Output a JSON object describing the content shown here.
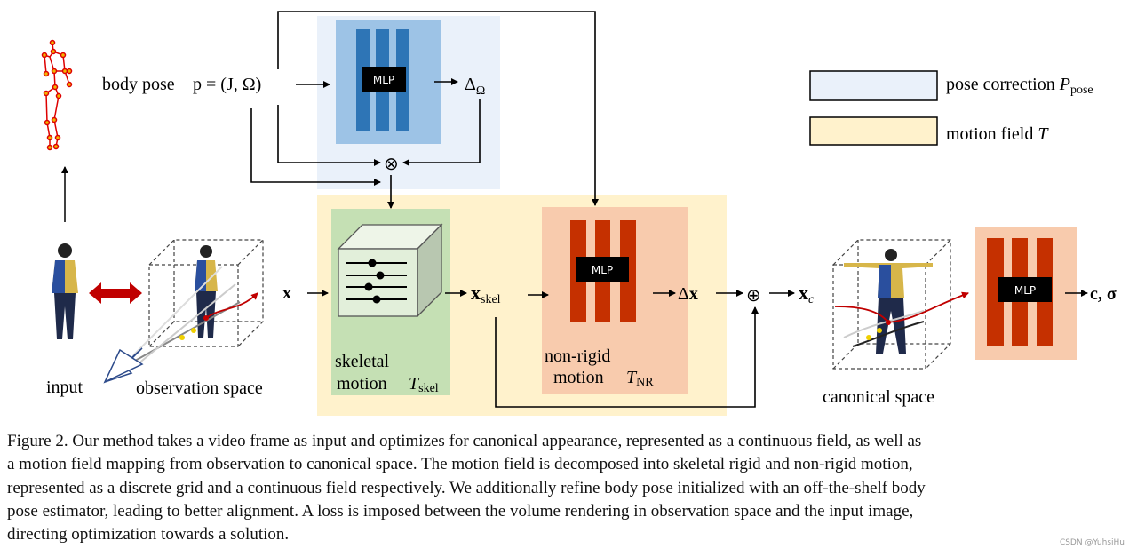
{
  "figure": {
    "labels": {
      "body_pose": "body pose",
      "pose_eq": "p = (J, Ω)",
      "mlp": "MLP",
      "delta_omega": "ΔΩ",
      "input": "input",
      "observation_space": "observation space",
      "x": "x",
      "skeletal": "skeletal",
      "motion": "motion",
      "t_skel": "Tskel",
      "x_skel": "xskel",
      "non_rigid": "non-rigid",
      "t_nr": "TNR",
      "delta_x": "Δx",
      "x_c": "xc",
      "c_sigma": "c, σ",
      "canonical_space": "canonical space"
    },
    "legend": [
      {
        "label": "pose correction Ppose",
        "color": "#eaf1fa"
      },
      {
        "label": "motion field T",
        "color": "#fff2cc"
      }
    ],
    "colors": {
      "pose_box": "#eaf1fa",
      "pose_inner": "#9dc3e6",
      "pose_bars": "#2e75b6",
      "motion_box": "#fff2cc",
      "skeletal_box": "#c5e0b4",
      "nonrigid_box": "#f8cbad",
      "red_bars": "#c53000"
    }
  },
  "caption": [
    "Figure 2. Our method takes a video frame as input and optimizes for canonical appearance, represented as a continuous field, as well as",
    "a motion field mapping from observation to canonical space.  The motion field is decomposed into skeletal rigid and non-rigid motion,",
    "represented as a discrete grid and a continuous field respectively. We additionally refine body pose initialized with an off-the-shelf body",
    "pose estimator, leading to better alignment.  A loss is imposed between the volume rendering in observation space and the input image,",
    "directing optimization towards a solution."
  ],
  "watermark": "CSDN @YuhsiHu"
}
